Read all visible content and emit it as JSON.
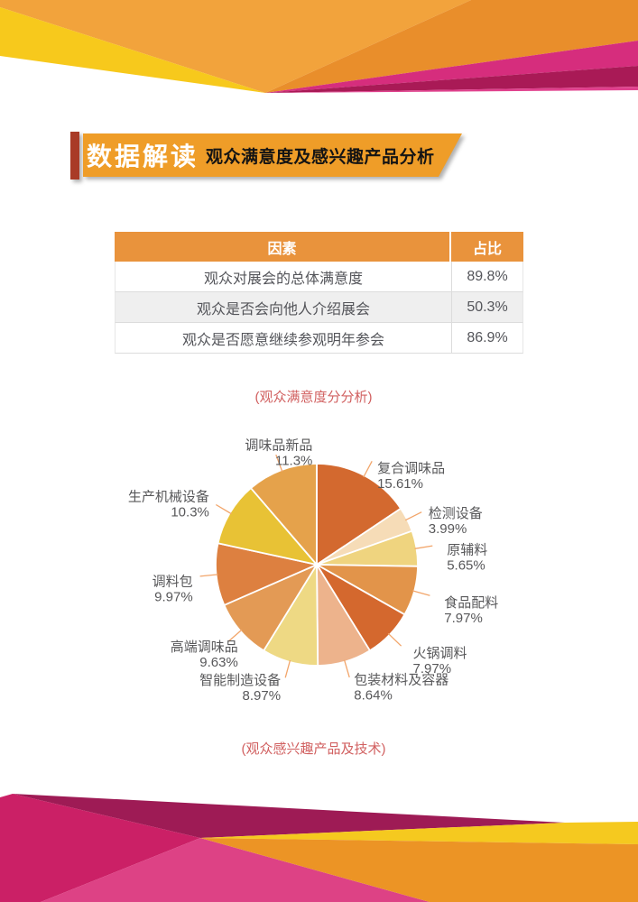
{
  "banner": {
    "title": "数据解读",
    "subtitle": "观众满意度及感兴趣产品分析"
  },
  "table": {
    "headers": [
      "因素",
      "占比"
    ],
    "rows": [
      [
        "观众对展会的总体满意度",
        "89.8%"
      ],
      [
        "观众是否会向他人介绍展会",
        "50.3%"
      ],
      [
        "观众是否愿意继续参观明年参会",
        "86.9%"
      ]
    ]
  },
  "captions": {
    "table_caption": "(观众满意度分分析)",
    "pie_caption": "(观众感兴趣产品及技术)"
  },
  "colors": {
    "banner_orange": "#ef9d28",
    "banner_red_bar": "#a93b27",
    "table_header_bg": "#e9933c",
    "table_alt_row_bg": "#efefef",
    "caption_red": "#d16060",
    "decor_magenta": "#d62d7d",
    "decor_yellow": "#f7c91c",
    "decor_orange": "#f2a33c"
  },
  "chart_data": {
    "type": "pie",
    "title": "观众感兴趣产品及技术",
    "categories": [
      "复合调味品",
      "检测设备",
      "原辅料",
      "食品配料",
      "火锅调料",
      "包装材料及容器",
      "智能制造设备",
      "高端调味品",
      "调料包",
      "生产机械设备",
      "调味品新品"
    ],
    "values": [
      15.61,
      3.99,
      5.65,
      7.97,
      7.97,
      8.64,
      8.97,
      9.63,
      9.97,
      10.3,
      11.3
    ],
    "value_labels": [
      "15.61%",
      "3.99%",
      "5.65%",
      "7.97%",
      "7.97%",
      "8.64%",
      "8.97%",
      "9.63%",
      "9.97%",
      "10.3%",
      "11.3%"
    ],
    "colors": [
      "#d3692f",
      "#f6dcb7",
      "#efd47f",
      "#e2944a",
      "#d4682e",
      "#edb38c",
      "#eed984",
      "#e39a55",
      "#dd8040",
      "#e8c235",
      "#e5a24b"
    ],
    "start_angle": "top, clockwise",
    "label_text_color": "#58585a",
    "leader_line_color": "#f2a56a",
    "legend_position": "labels-around-pie"
  }
}
